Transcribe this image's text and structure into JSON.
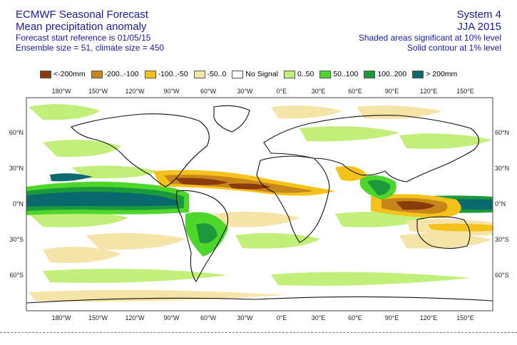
{
  "header": {
    "title": "ECMWF Seasonal Forecast",
    "subtitle": "Mean precipitation anomaly",
    "start_ref": "Forecast start reference is 01/05/15",
    "ensemble": "Ensemble size = 51, climate size = 450",
    "system": "System 4",
    "season": "JJA 2015",
    "shaded_note": "Shaded areas significant at 10% level",
    "contour_note": "Solid contour at 1% level"
  },
  "legend": [
    {
      "label": "<-200mm",
      "color": "#8b3a0e"
    },
    {
      "label": "-200..-100",
      "color": "#c8861a"
    },
    {
      "label": "-100..-50",
      "color": "#f5c21a"
    },
    {
      "label": "-50..0",
      "color": "#f6e3a8"
    },
    {
      "label": "No Signal",
      "color": "#ffffff"
    },
    {
      "label": "0..50",
      "color": "#c2ee7a"
    },
    {
      "label": "50..100",
      "color": "#4fd62a"
    },
    {
      "label": "100..200",
      "color": "#1a9a3a"
    },
    {
      "label": "> 200mm",
      "color": "#0b6a6e"
    }
  ],
  "axes": {
    "lon_labels": [
      "180°W",
      "150°W",
      "120°W",
      "90°W",
      "60°W",
      "30°W",
      "0°E",
      "30°E",
      "60°E",
      "90°E",
      "120°E",
      "150°E"
    ],
    "lat_left": [
      "60°N",
      "30°N",
      "0°N",
      "30°S",
      "60°S"
    ],
    "lat_right": [
      "60°N",
      "30°N",
      "0°N",
      "30°S",
      "60°S"
    ]
  }
}
